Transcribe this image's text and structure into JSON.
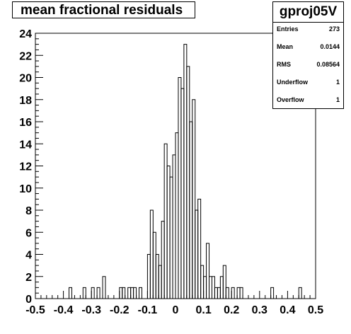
{
  "chart_data": {
    "type": "bar",
    "title": "mean fractional residuals",
    "stats": {
      "name": "gproj05V",
      "entries_label": "Entries",
      "entries": "273",
      "mean_label": "Mean",
      "mean": "0.0144",
      "rms_label": "RMS",
      "rms": "0.08564",
      "underflow_label": "Underflow",
      "underflow": "1",
      "overflow_label": "Overflow",
      "overflow": "1"
    },
    "xlim": [
      -0.5,
      0.5
    ],
    "ylim": [
      0,
      24
    ],
    "bin_width": 0.01,
    "x_ticks": [
      "-0.5",
      "-0.4",
      "-0.3",
      "-0.2",
      "-0.1",
      "0",
      "0.1",
      "0.2",
      "0.3",
      "0.4",
      "0.5"
    ],
    "y_ticks": [
      "0",
      "2",
      "4",
      "6",
      "8",
      "10",
      "12",
      "14",
      "16",
      "18",
      "20",
      "22",
      "24"
    ],
    "bins": [
      [
        -0.38,
        1
      ],
      [
        -0.33,
        1
      ],
      [
        -0.3,
        1
      ],
      [
        -0.28,
        1
      ],
      [
        -0.26,
        2
      ],
      [
        -0.2,
        1
      ],
      [
        -0.19,
        1
      ],
      [
        -0.17,
        1
      ],
      [
        -0.16,
        1
      ],
      [
        -0.15,
        1
      ],
      [
        -0.13,
        1
      ],
      [
        -0.1,
        4
      ],
      [
        -0.09,
        8
      ],
      [
        -0.08,
        6
      ],
      [
        -0.07,
        4
      ],
      [
        -0.06,
        3
      ],
      [
        -0.05,
        7
      ],
      [
        -0.04,
        14
      ],
      [
        -0.03,
        12
      ],
      [
        -0.02,
        11
      ],
      [
        -0.01,
        13
      ],
      [
        0.0,
        15
      ],
      [
        0.01,
        20
      ],
      [
        0.02,
        19
      ],
      [
        0.03,
        23
      ],
      [
        0.04,
        21
      ],
      [
        0.05,
        16
      ],
      [
        0.06,
        18
      ],
      [
        0.07,
        8
      ],
      [
        0.08,
        9
      ],
      [
        0.09,
        3
      ],
      [
        0.1,
        2
      ],
      [
        0.11,
        5
      ],
      [
        0.12,
        2
      ],
      [
        0.13,
        2
      ],
      [
        0.14,
        1
      ],
      [
        0.15,
        1
      ],
      [
        0.16,
        2
      ],
      [
        0.17,
        3
      ],
      [
        0.18,
        1
      ],
      [
        0.2,
        1
      ],
      [
        0.22,
        1
      ],
      [
        0.23,
        1
      ],
      [
        0.34,
        1
      ],
      [
        0.44,
        1
      ]
    ]
  }
}
